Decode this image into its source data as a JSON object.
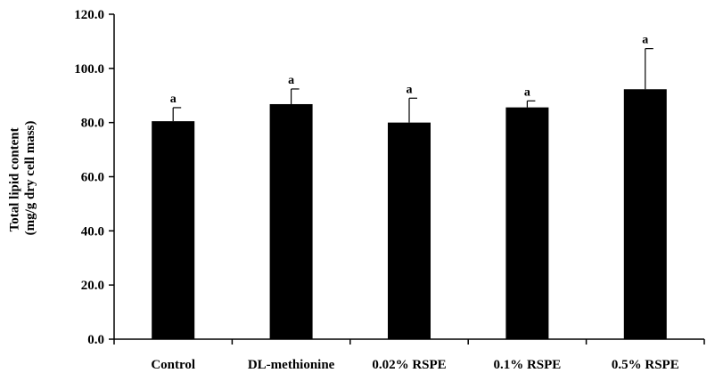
{
  "chart_data": {
    "type": "bar",
    "categories": [
      "Control",
      "DL-methionine",
      "0.02% RSPE",
      "0.1% RSPE",
      "0.5% RSPE"
    ],
    "values": [
      80.5,
      86.8,
      80.0,
      85.6,
      92.3
    ],
    "errors": [
      5.0,
      5.6,
      9.0,
      2.4,
      15.0
    ],
    "significance": [
      "a",
      "a",
      "a",
      "a",
      "a"
    ],
    "title": "",
    "xlabel": "",
    "ylabel_line1": "Total lipid content",
    "ylabel_line2": "(mg/g dry cell mass)",
    "ylim": [
      0,
      120
    ],
    "yticks": [
      "0.0",
      "20.0",
      "40.0",
      "60.0",
      "80.0",
      "100.0",
      "120.0"
    ],
    "bar_color": "#000000",
    "grid": false
  }
}
